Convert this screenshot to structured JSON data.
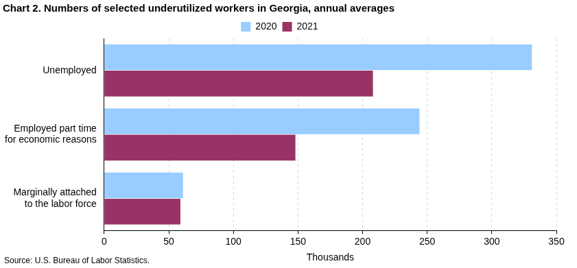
{
  "chart_data": {
    "type": "bar",
    "orientation": "horizontal",
    "title": "Chart 2. Numbers of selected underutilized workers in Georgia, annual averages",
    "source": "Source: U.S. Bureau of Labor Statistics.",
    "x_label": "Thousands",
    "categories": [
      [
        "Unemployed"
      ],
      [
        "Employed part time",
        "for economic reasons"
      ],
      [
        "Marginally attached",
        "to the labor force"
      ]
    ],
    "series": [
      {
        "name": "2020",
        "color": "#99ccff",
        "values": [
          331,
          244,
          61
        ]
      },
      {
        "name": "2021",
        "color": "#993366",
        "values": [
          208,
          148,
          59
        ]
      }
    ],
    "xlim": [
      0,
      350
    ],
    "xticks": [
      0,
      50,
      100,
      150,
      200,
      250,
      300,
      350
    ],
    "grid": true,
    "legend": "top"
  }
}
